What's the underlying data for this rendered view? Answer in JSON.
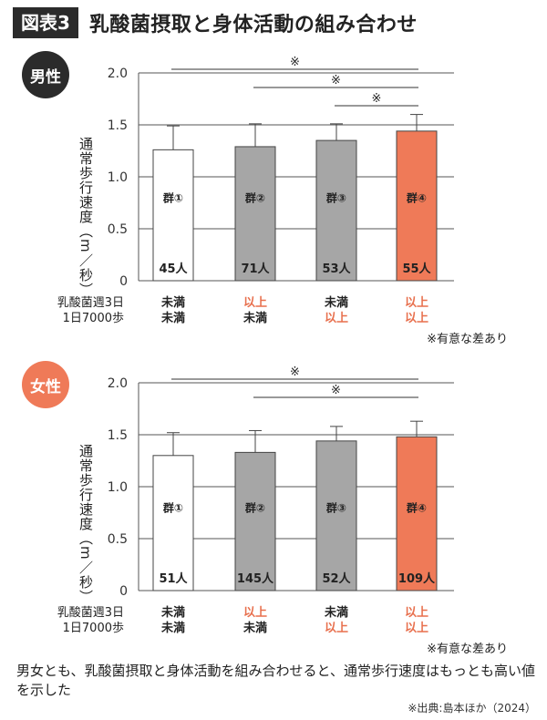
{
  "header": {
    "badge": "図表3",
    "title": "乳酸菌摂取と身体活動の組み合わせ"
  },
  "colors": {
    "group1": "#ffffff",
    "group2": "#a6a6a6",
    "group3": "#a6a6a6",
    "group4": "#ef7a58",
    "male_badge": "#2b2b2b",
    "female_badge": "#ef7a58",
    "highlight_text": "#e8704e"
  },
  "chart_data": [
    {
      "type": "bar",
      "panel": "男性",
      "ylabel": "通常歩行速度（m／秒）",
      "ylim": [
        0,
        2.0
      ],
      "yticks": [
        "0",
        "0.5",
        "1.0",
        "1.5",
        "2.0"
      ],
      "grid": true,
      "categories": [
        "群①",
        "群②",
        "群③",
        "群④"
      ],
      "values": [
        1.26,
        1.29,
        1.35,
        1.44
      ],
      "error_upper": [
        1.49,
        1.51,
        1.51,
        1.6
      ],
      "counts": [
        "45人",
        "71人",
        "53人",
        "55人"
      ],
      "row_labels": [
        "乳酸菌週3日",
        "1日7000歩"
      ],
      "conditions": [
        [
          "未満",
          "以上",
          "未満",
          "以上"
        ],
        [
          "未満",
          "未満",
          "以上",
          "以上"
        ]
      ],
      "significance": [
        {
          "from": "群①",
          "to": "群④",
          "mark": "※"
        },
        {
          "from": "群②",
          "to": "群④",
          "mark": "※"
        },
        {
          "from": "群③",
          "to": "群④",
          "mark": "※"
        }
      ],
      "note": "※有意な差あり"
    },
    {
      "type": "bar",
      "panel": "女性",
      "ylabel": "通常歩行速度（m／秒）",
      "ylim": [
        0,
        2.0
      ],
      "yticks": [
        "0",
        "0.5",
        "1.0",
        "1.5",
        "2.0"
      ],
      "grid": true,
      "categories": [
        "群①",
        "群②",
        "群③",
        "群④"
      ],
      "values": [
        1.3,
        1.33,
        1.44,
        1.48
      ],
      "error_upper": [
        1.52,
        1.54,
        1.58,
        1.63
      ],
      "counts": [
        "51人",
        "145人",
        "52人",
        "109人"
      ],
      "row_labels": [
        "乳酸菌週3日",
        "1日7000歩"
      ],
      "conditions": [
        [
          "未満",
          "以上",
          "未満",
          "以上"
        ],
        [
          "未満",
          "未満",
          "以上",
          "以上"
        ]
      ],
      "significance": [
        {
          "from": "群①",
          "to": "群④",
          "mark": "※"
        },
        {
          "from": "群②",
          "to": "群④",
          "mark": "※"
        }
      ],
      "note": "※有意な差あり"
    }
  ],
  "caption": "男女とも、乳酸菌摂取と身体活動を組み合わせると、通常歩行速度はもっとも高い値を示した",
  "source": "※出典:島本ほか（2024）"
}
